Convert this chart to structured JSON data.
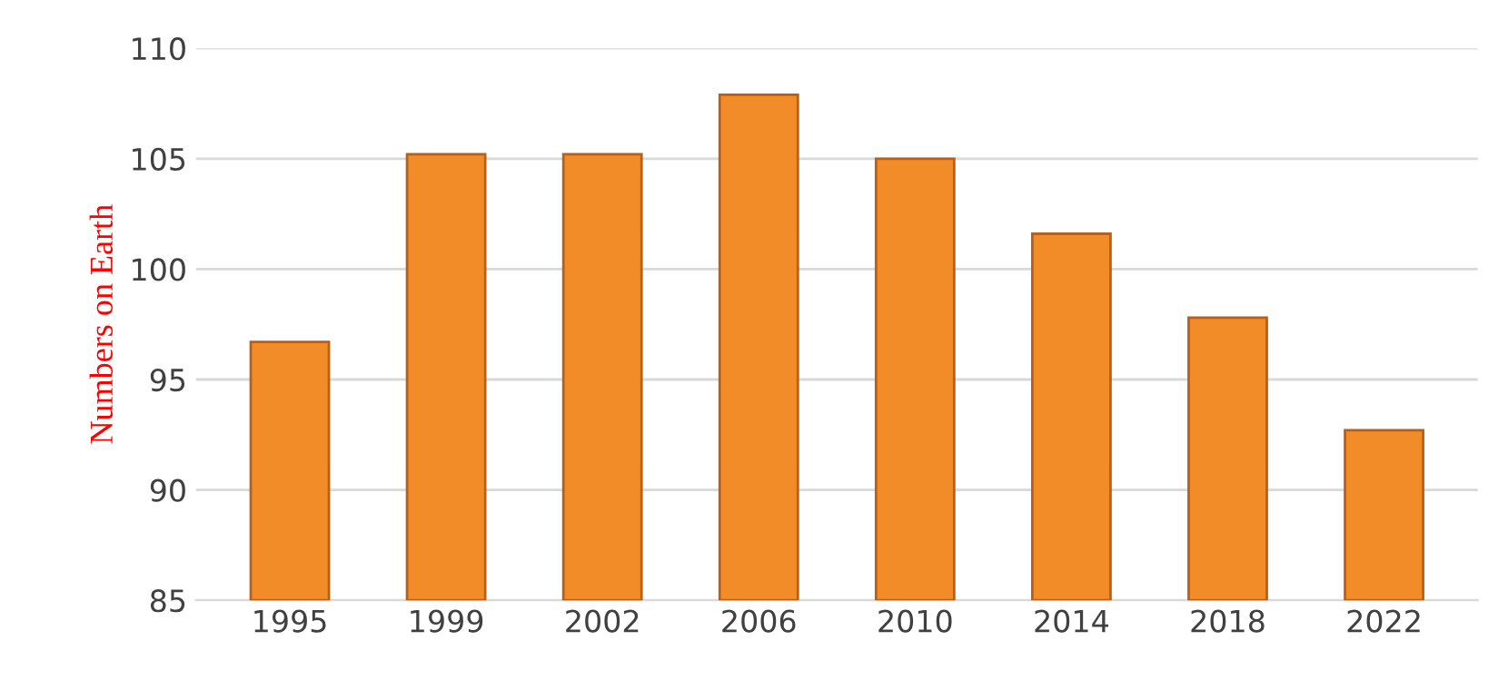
{
  "chart_data": {
    "type": "bar",
    "ylabel": "Numbers on Earth",
    "categories": [
      "1995",
      "1999",
      "2002",
      "2006",
      "2010",
      "2014",
      "2018",
      "2022"
    ],
    "values": [
      96.7,
      105.2,
      105.2,
      107.9,
      105.0,
      101.6,
      97.8,
      92.7
    ],
    "color": "#f28c28",
    "ylim": [
      85,
      110
    ],
    "yticks": [
      85,
      90,
      95,
      100,
      105,
      110
    ],
    "grid": "y"
  }
}
